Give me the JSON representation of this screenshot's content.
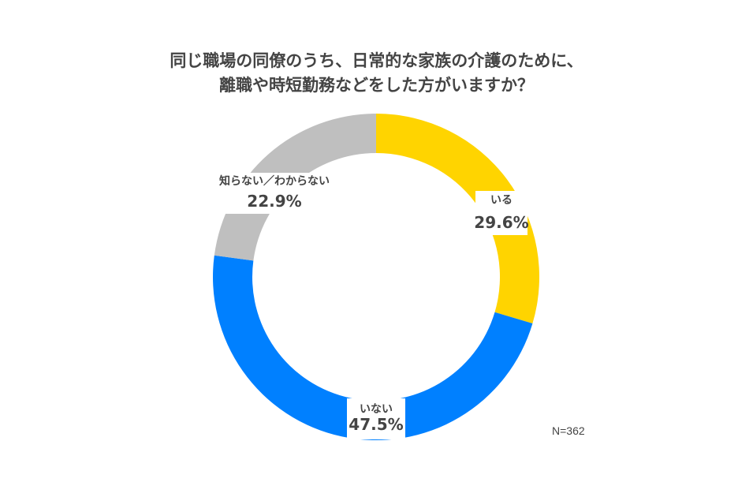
{
  "title": {
    "line1": "同じ職場の同僚のうち、日常的な家族の介護のために、",
    "line2": "離職や時短勤務などをした方がいますか？"
  },
  "chart_data": {
    "type": "pie",
    "subtype": "donut",
    "start": "top, clockwise",
    "slices": [
      {
        "label": "いる",
        "value": 29.6,
        "value_label": "29.6%",
        "color": "#FFD400"
      },
      {
        "label": "いない",
        "value": 47.5,
        "value_label": "47.5%",
        "color": "#0080FF"
      },
      {
        "label": "知らない／わからない",
        "value": 22.9,
        "value_label": "22.9%",
        "color": "#BFBFBF"
      }
    ]
  },
  "sample_size": "N=362"
}
